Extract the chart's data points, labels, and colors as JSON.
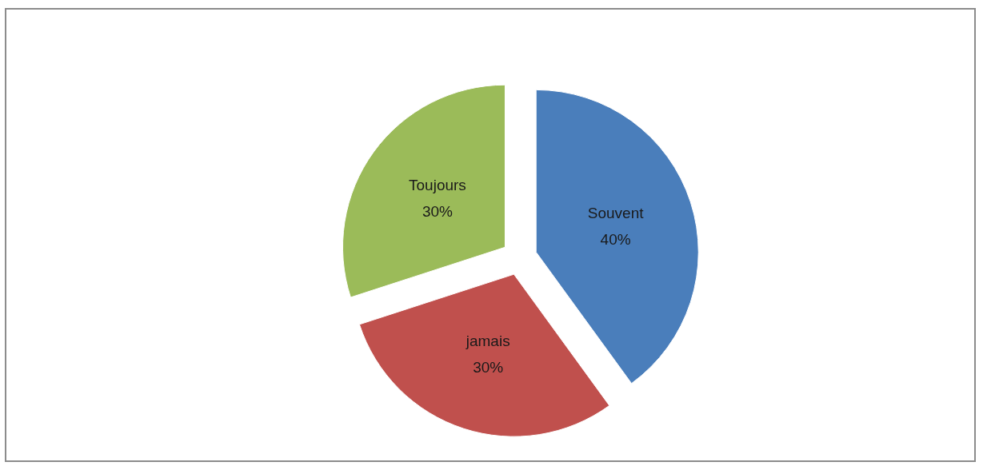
{
  "chart_data": {
    "type": "pie",
    "categories": [
      "Souvent",
      "jamais",
      "Toujours"
    ],
    "values": [
      40,
      30,
      30
    ],
    "value_labels": [
      "40%",
      "30%",
      "30%"
    ],
    "colors": [
      "#4a7ebb",
      "#c0504d",
      "#9bbb59"
    ]
  }
}
